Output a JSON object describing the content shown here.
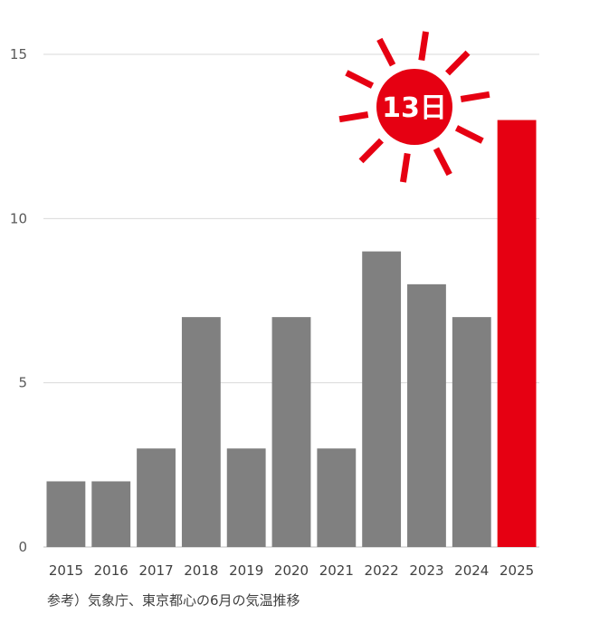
{
  "chart_data": {
    "type": "bar",
    "categories": [
      "2015",
      "2016",
      "2017",
      "2018",
      "2019",
      "2020",
      "2021",
      "2022",
      "2023",
      "2024",
      "2025"
    ],
    "values": [
      2,
      2,
      3,
      7,
      3,
      7,
      3,
      9,
      8,
      7,
      13
    ],
    "ylim": [
      0,
      15
    ],
    "yticks": [
      "0",
      "5",
      "10",
      "15"
    ],
    "grid": true,
    "bar_color": "#808080",
    "highlight_color": "#e60012",
    "highlight_category": "2025",
    "annotation": "13日"
  },
  "footnote": "参考）気象庁、東京都心の6月の気温推移"
}
